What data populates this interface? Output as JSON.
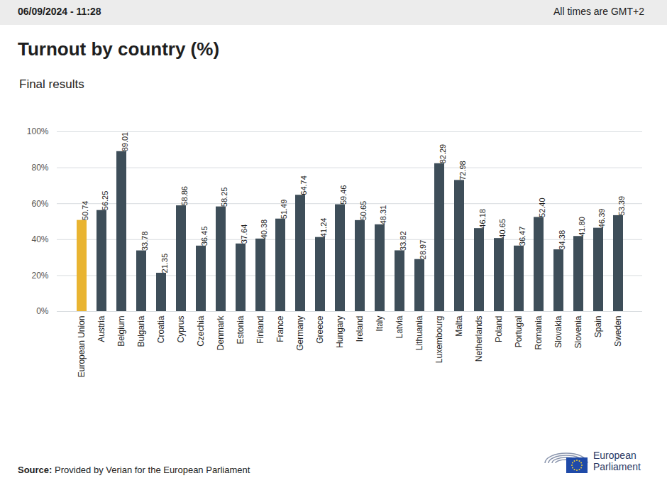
{
  "chart_data": {
    "type": "bar",
    "header": {
      "timestamp": "06/09/2024 - 11:28",
      "timezone_note": "All times are GMT+2"
    },
    "title": "Turnout by country (%)",
    "subtitle": "Final results",
    "categories": [
      "European Union",
      "Austria",
      "Belgium",
      "Bulgaria",
      "Croatia",
      "Cyprus",
      "Czechia",
      "Denmark",
      "Estonia",
      "Finland",
      "France",
      "Germany",
      "Greece",
      "Hungary",
      "Ireland",
      "Italy",
      "Latvia",
      "Lithuania",
      "Luxembourg",
      "Malta",
      "Netherlands",
      "Poland",
      "Portugal",
      "Romania",
      "Slovakia",
      "Slovenia",
      "Spain",
      "Sweden"
    ],
    "values": [
      50.74,
      56.25,
      89.01,
      33.78,
      21.35,
      58.86,
      36.45,
      58.25,
      37.64,
      40.38,
      51.49,
      64.74,
      41.24,
      59.46,
      50.65,
      48.31,
      33.82,
      28.97,
      82.29,
      72.98,
      46.18,
      40.65,
      36.47,
      52.4,
      34.38,
      41.8,
      46.39,
      53.39
    ],
    "value_labels": [
      "50.74",
      "56.25",
      "89.01",
      "33.78",
      "21.35",
      "58.86",
      "36.45",
      "58.25",
      "37.64",
      "40.38",
      "51.49",
      "64.74",
      "41.24",
      "59.46",
      "50.65",
      "48.31",
      "33.82",
      "28.97",
      "82.29",
      "72.98",
      "46.18",
      "40.65",
      "36.47",
      "52.40",
      "34.38",
      "41.80",
      "46.39",
      "53.39"
    ],
    "colors": [
      "#e9b431",
      "#3e4e59",
      "#3e4e59",
      "#3e4e59",
      "#3e4e59",
      "#3e4e59",
      "#3e4e59",
      "#3e4e59",
      "#3e4e59",
      "#3e4e59",
      "#3e4e59",
      "#3e4e59",
      "#3e4e59",
      "#3e4e59",
      "#3e4e59",
      "#3e4e59",
      "#3e4e59",
      "#3e4e59",
      "#3e4e59",
      "#3e4e59",
      "#3e4e59",
      "#3e4e59",
      "#3e4e59",
      "#3e4e59",
      "#3e4e59",
      "#3e4e59",
      "#3e4e59",
      "#3e4e59"
    ],
    "ylim": [
      0,
      100
    ],
    "yticks": [
      {
        "value": 0,
        "label": "0%"
      },
      {
        "value": 20,
        "label": "20%"
      },
      {
        "value": 40,
        "label": "40%"
      },
      {
        "value": 60,
        "label": "60%"
      },
      {
        "value": 80,
        "label": "80%"
      },
      {
        "value": 100,
        "label": "100%"
      }
    ],
    "grid": true,
    "data_labels": true,
    "source_label": "Source:",
    "source_text": "Provided by Verian for the European Parliament",
    "logo_text": [
      "European",
      "Parliament"
    ]
  }
}
